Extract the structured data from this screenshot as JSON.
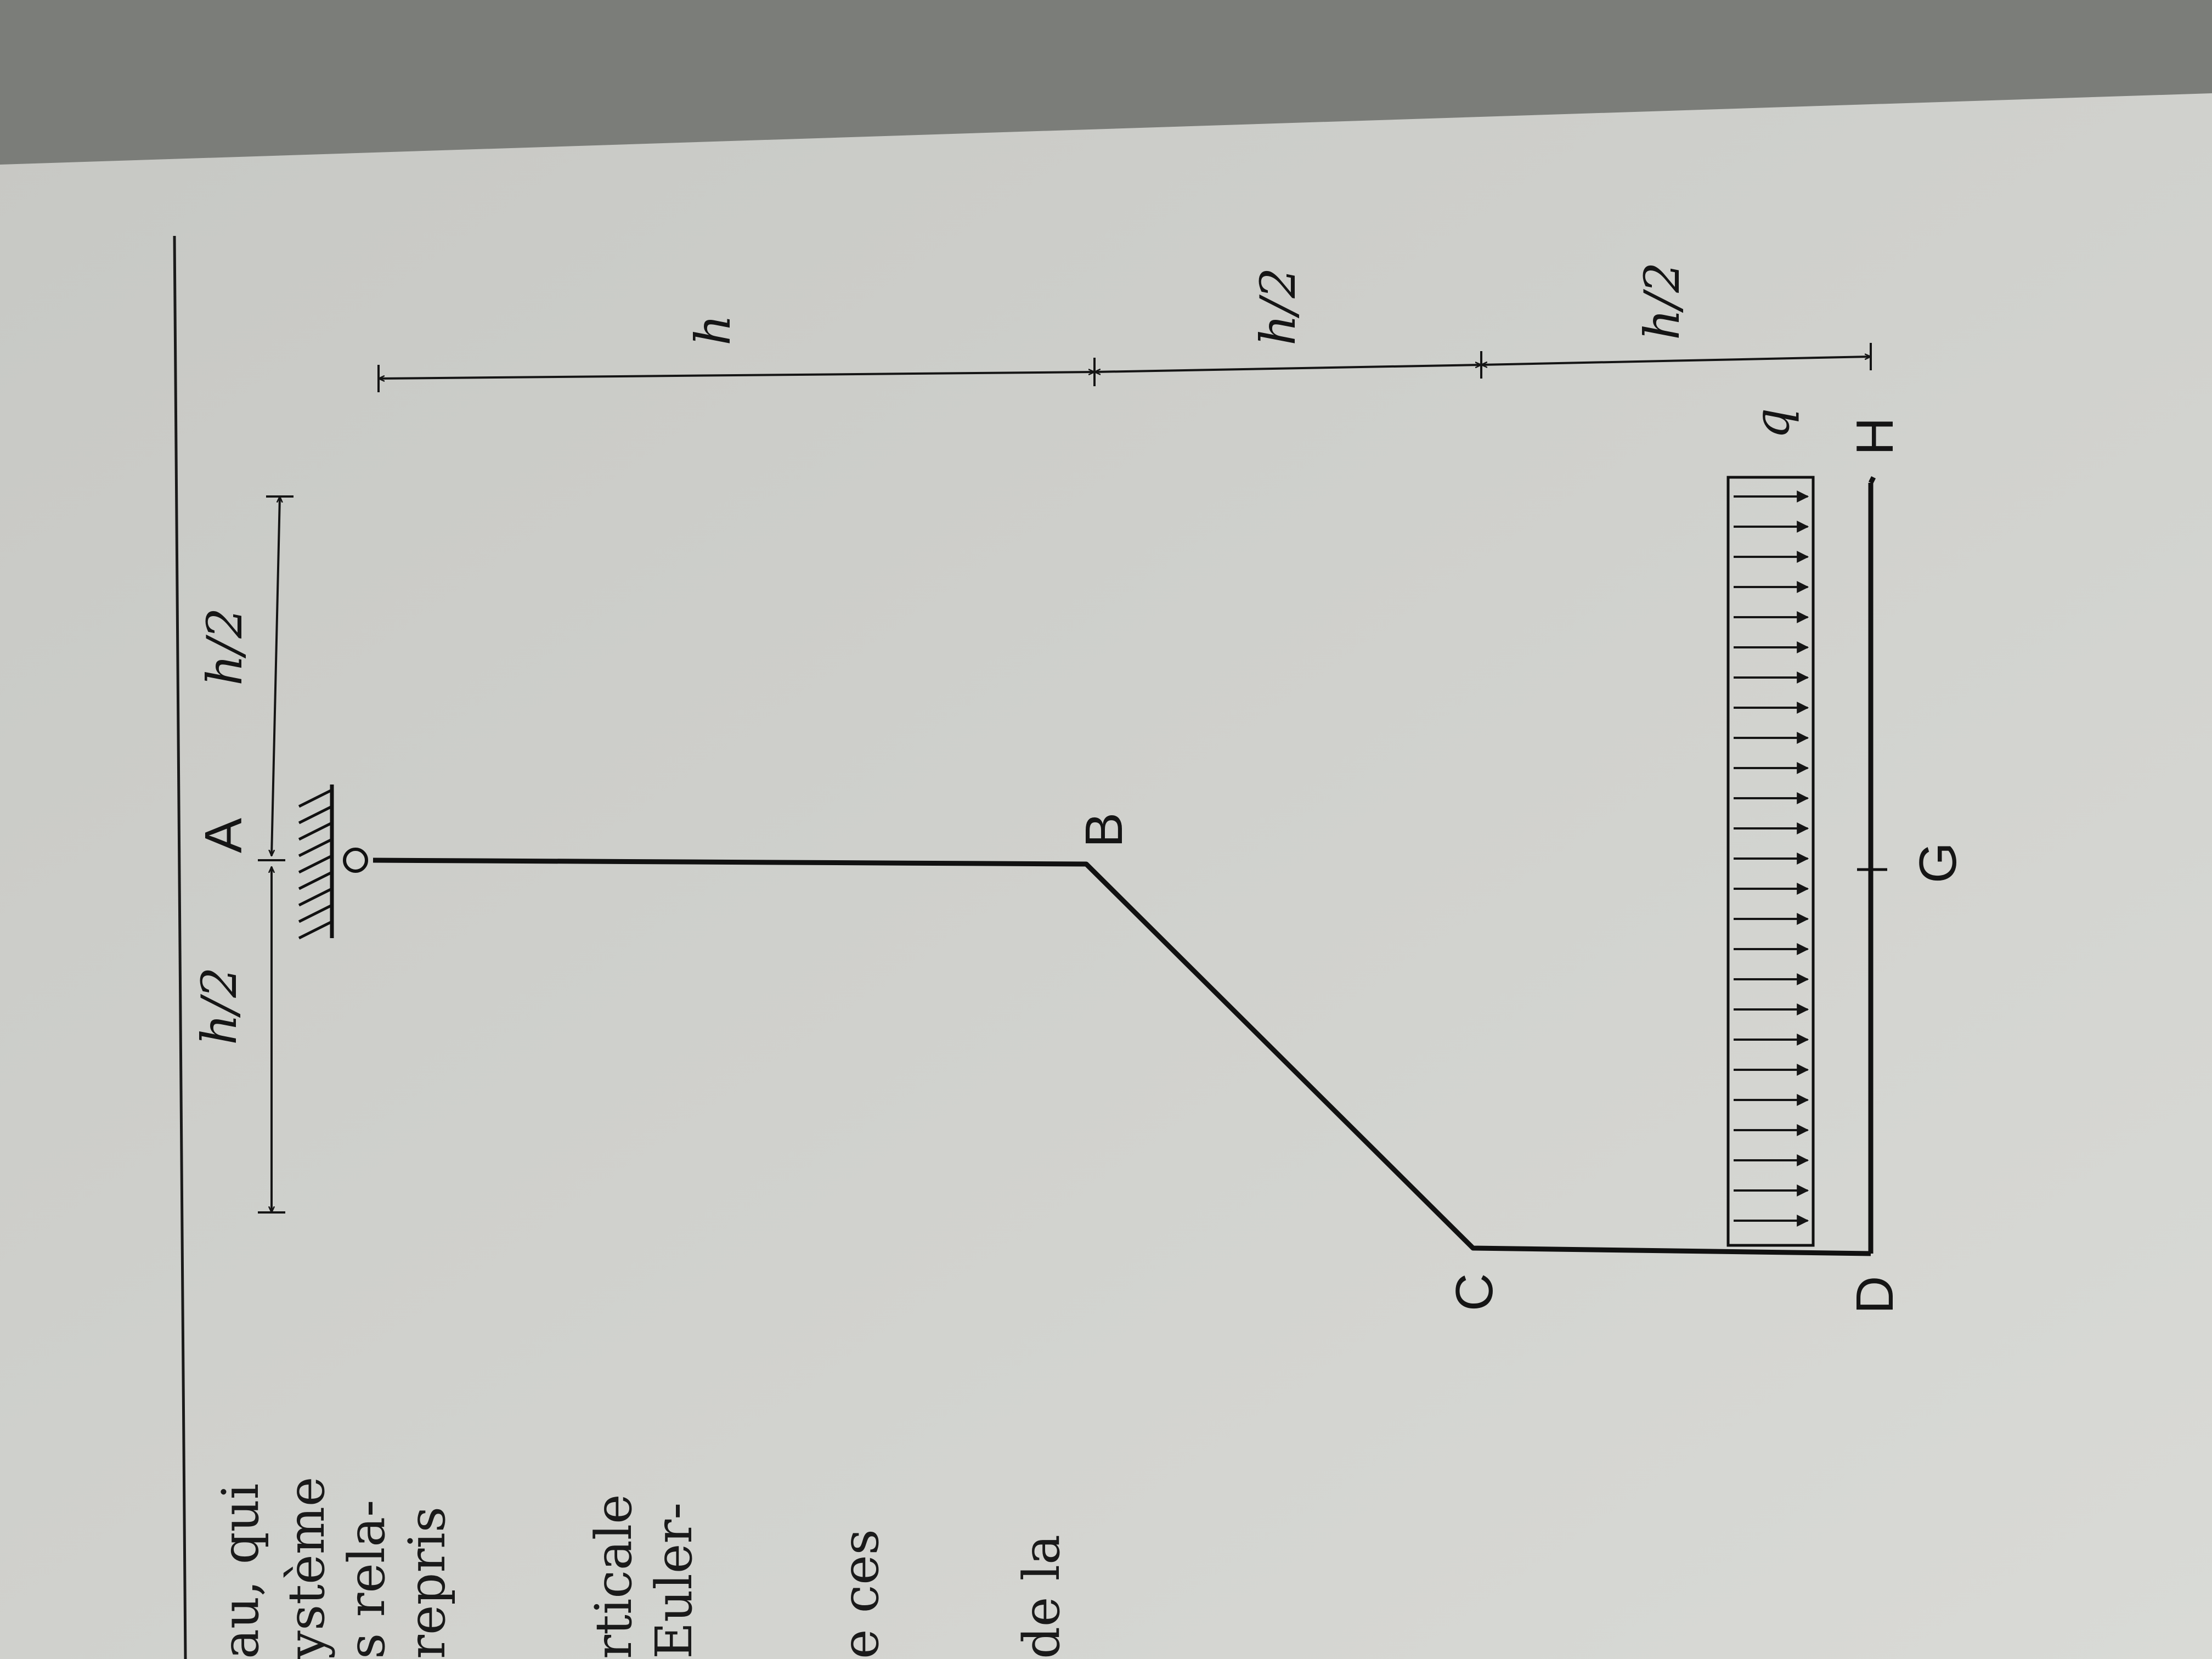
{
  "figure": {
    "points": [
      "A",
      "B",
      "C",
      "D",
      "G",
      "H"
    ],
    "load_label": "q",
    "dimensions": {
      "top_left": "h/2",
      "top_right": "h/2",
      "right_top": "h",
      "right_middle": "h/2",
      "right_bottom": "h/2"
    }
  },
  "side_text": [
    "au, qui",
    "ystème",
    "s rela-",
    "repris",
    "rticale",
    "Euler-",
    "e ces",
    "de la"
  ],
  "colors": {
    "line": "#111111",
    "paper": "#d2d3cf",
    "background": "#7b7d79"
  }
}
